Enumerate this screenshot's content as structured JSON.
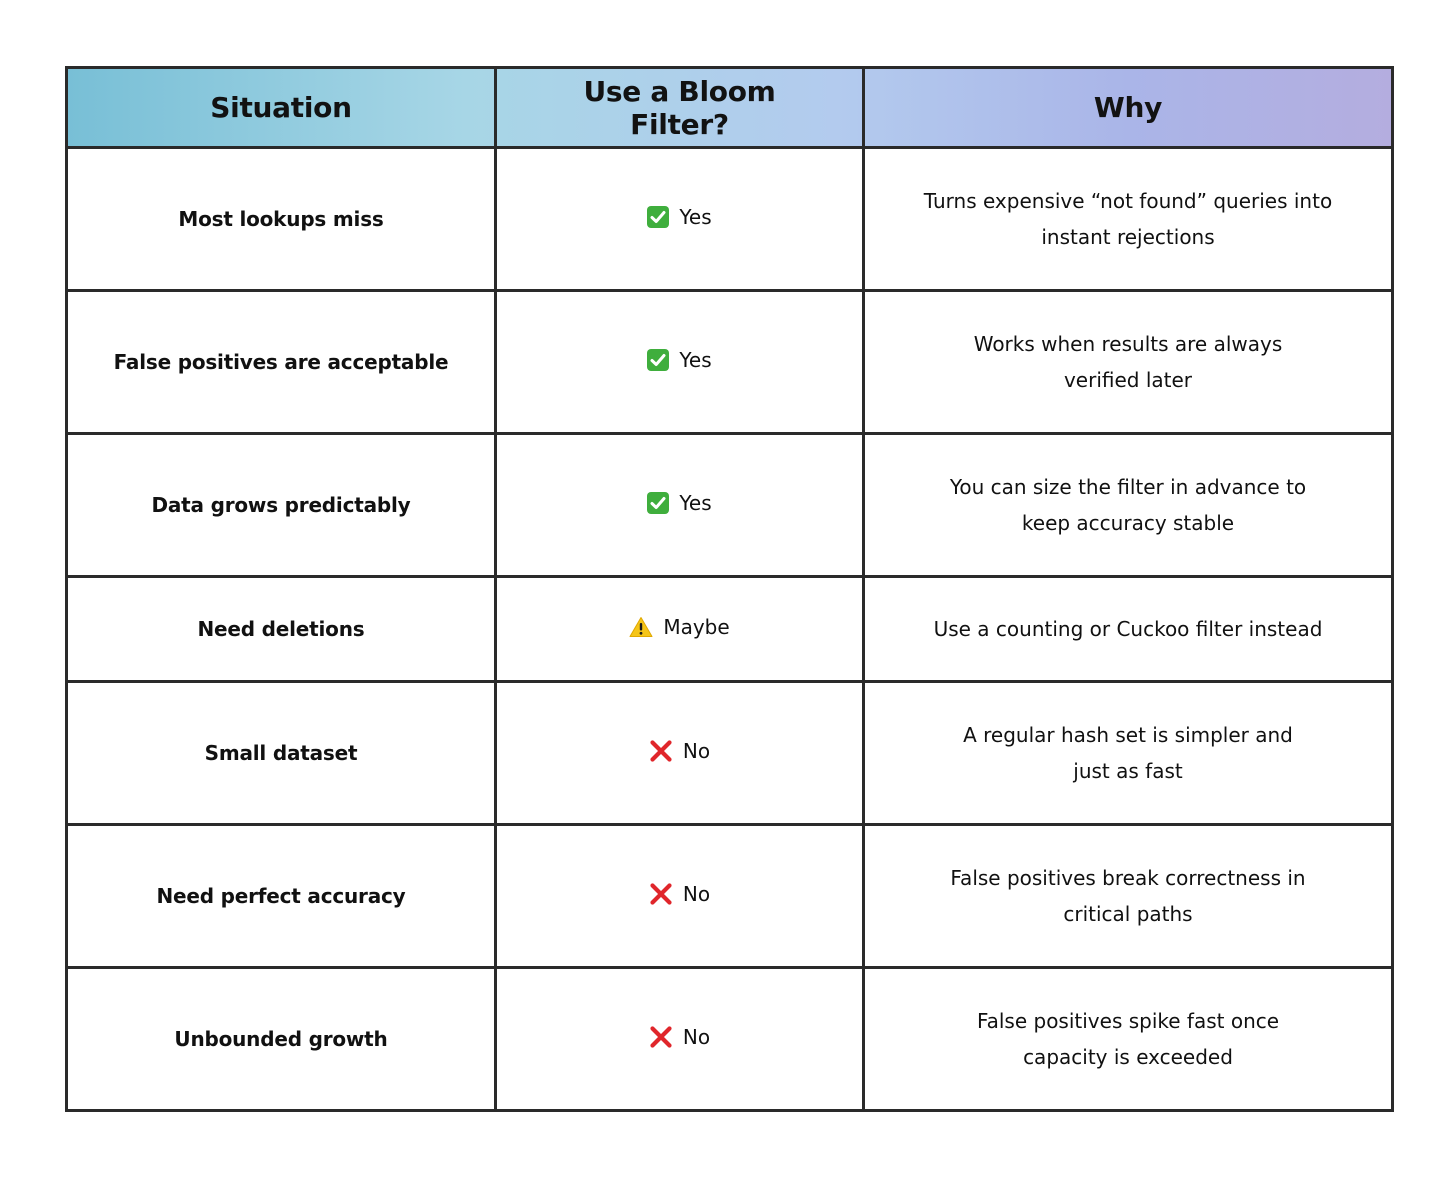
{
  "table": {
    "headers": [
      "Situation",
      "Use a Bloom Filter?",
      "Why"
    ],
    "rows": [
      {
        "situation": "Most lookups miss",
        "verdict": "Yes",
        "verdict_icon": "check-mark-icon",
        "reason_line1": "Turns expensive “not found” queries into",
        "reason_line2": "instant rejections"
      },
      {
        "situation": "False positives are acceptable",
        "verdict": "Yes",
        "verdict_icon": "check-mark-icon",
        "reason_line1": "Works when results are always",
        "reason_line2": "verified later"
      },
      {
        "situation": "Data grows predictably",
        "verdict": "Yes",
        "verdict_icon": "check-mark-icon",
        "reason_line1": "You can size the filter in advance to",
        "reason_line2": "keep accuracy stable"
      },
      {
        "situation": "Need deletions",
        "verdict": "Maybe",
        "verdict_icon": "warning-icon",
        "reason_line1": "Use a counting or Cuckoo filter instead",
        "reason_line2": ""
      },
      {
        "situation": "Small dataset",
        "verdict": "No",
        "verdict_icon": "cross-mark-icon",
        "reason_line1": "A regular hash set is simpler and",
        "reason_line2": "just as fast"
      },
      {
        "situation": "Need perfect accuracy",
        "verdict": "No",
        "verdict_icon": "cross-mark-icon",
        "reason_line1": "False positives break correctness in",
        "reason_line2": "critical paths"
      },
      {
        "situation": "Unbounded growth",
        "verdict": "No",
        "verdict_icon": "cross-mark-icon",
        "reason_line1": "False positives spike fast once",
        "reason_line2": "capacity is exceeded"
      }
    ]
  },
  "colors": {
    "check": "#3fae3d",
    "cross": "#e0262b",
    "warning": "#f5c518",
    "border": "#2a2a2a",
    "header_gradient_start": "#78bfd6",
    "header_gradient_end": "#b4addf"
  }
}
